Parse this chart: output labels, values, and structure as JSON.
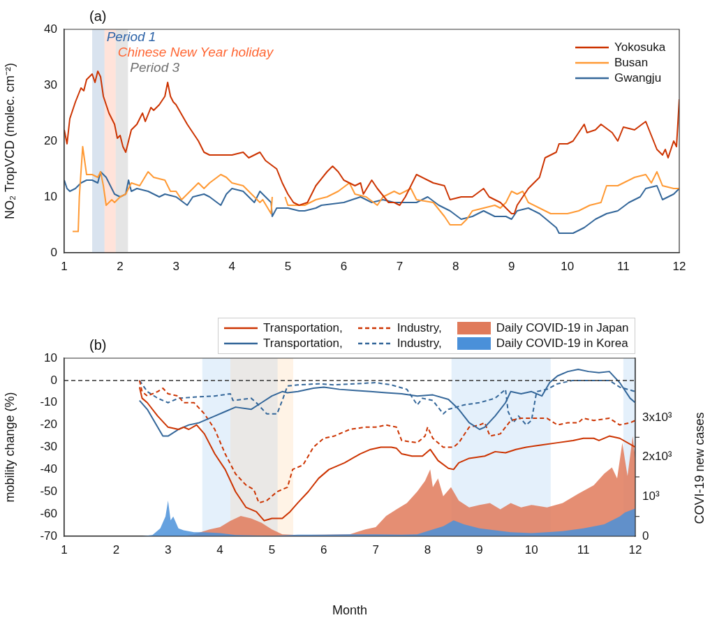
{
  "chart_data": [
    {
      "type": "line",
      "title": "(a)",
      "ylabel": "NO₂ TropVCD (molec. cm⁻²)",
      "xlim": [
        1,
        12
      ],
      "xticks": [
        1,
        2,
        3,
        4,
        5,
        6,
        7,
        8,
        9,
        10,
        11,
        12
      ],
      "ylim": [
        0,
        40
      ],
      "yticks": [
        0,
        10,
        20,
        30,
        40
      ],
      "legend": "top right",
      "bands": [
        {
          "axis": "x",
          "from": 1.5,
          "to": 1.72,
          "label": "Period 1",
          "color": "#2e64a8"
        },
        {
          "axis": "x",
          "from": 1.72,
          "to": 1.92,
          "label": "Chinese New Year holiday",
          "color": "#ff6633"
        },
        {
          "axis": "x",
          "from": 1.92,
          "to": 2.14,
          "label": "Period 3",
          "color": "#707070"
        }
      ],
      "series": [
        {
          "name": "Yokosuka",
          "color": "#cc3300",
          "x": [
            1.0,
            1.05,
            1.1,
            1.2,
            1.3,
            1.35,
            1.4,
            1.5,
            1.55,
            1.6,
            1.65,
            1.7,
            1.8,
            1.9,
            1.95,
            2.0,
            2.05,
            2.1,
            2.15,
            2.2,
            2.3,
            2.4,
            2.45,
            2.55,
            2.6,
            2.7,
            2.8,
            2.85,
            2.9,
            2.95,
            3.0,
            3.2,
            3.4,
            3.5,
            3.6,
            3.8,
            4.0,
            4.2,
            4.3,
            4.5,
            4.6,
            4.8,
            4.9,
            5.0,
            5.1,
            5.2,
            5.35,
            5.5,
            5.7,
            5.8,
            5.9,
            6.0,
            6.2,
            6.3,
            6.35,
            6.5,
            6.6,
            6.8,
            6.9,
            7.0,
            7.1,
            7.3,
            7.5,
            7.6,
            7.8,
            7.9,
            8.1,
            8.3,
            8.5,
            8.6,
            8.8,
            9.0,
            9.05,
            9.1,
            9.3,
            9.5,
            9.6,
            9.8,
            9.85,
            10.0,
            10.1,
            10.3,
            10.35,
            10.5,
            10.6,
            10.8,
            10.9,
            11.0,
            11.2,
            11.4,
            11.5,
            11.6,
            11.7,
            11.75,
            11.8,
            11.9,
            11.95,
            11.98,
            12.0
          ],
          "values": [
            22,
            19.5,
            24,
            27,
            29.5,
            29,
            31,
            32,
            30.5,
            32.5,
            31.5,
            28,
            25,
            23,
            20.5,
            21,
            19,
            18,
            20,
            22,
            23,
            25,
            23.5,
            26,
            25.5,
            26.5,
            28,
            30.5,
            28,
            27,
            26.5,
            23,
            20,
            18,
            17.5,
            17.5,
            17.5,
            18,
            17,
            18,
            16.5,
            15,
            12.5,
            10.5,
            9,
            8.5,
            9,
            12,
            14.5,
            15.5,
            14.5,
            13,
            12,
            12.5,
            10.5,
            13,
            11.5,
            9,
            9,
            8.5,
            10,
            14,
            13,
            12.5,
            12,
            9.5,
            10,
            10,
            11.5,
            10,
            9,
            7,
            7,
            8.5,
            11.5,
            13.5,
            17,
            18,
            19.5,
            19.5,
            20,
            23,
            21.5,
            22,
            23,
            21.5,
            20,
            22.5,
            22,
            23.5,
            21,
            18.5,
            17.5,
            18.5,
            17,
            20,
            19,
            24,
            27.5
          ]
        },
        {
          "name": "Busan",
          "color": "#ff9933",
          "x": [
            1.15,
            1.25,
            1.27,
            1.33,
            1.4,
            1.5,
            1.6,
            1.65,
            1.7,
            1.75,
            1.85,
            1.9,
            2.0,
            2.1,
            2.2,
            2.35,
            2.5,
            2.6,
            2.8,
            2.9,
            3.0,
            3.1,
            3.2,
            3.3,
            3.4,
            3.5,
            3.6,
            3.8,
            3.9,
            4.0,
            4.2,
            4.4,
            4.5,
            4.55,
            4.7,
            4.72,
            4.8,
            4.95,
            5.0,
            5.3,
            5.5,
            5.7,
            5.9,
            6.1,
            6.2,
            6.4,
            6.6,
            6.7,
            6.9,
            7.0,
            7.2,
            7.3,
            7.6,
            7.8,
            7.9,
            8.1,
            8.2,
            8.3,
            8.5,
            8.7,
            8.8,
            8.9,
            9.0,
            9.1,
            9.2,
            9.3,
            9.5,
            9.7,
            10.0,
            10.2,
            10.4,
            10.6,
            10.7,
            10.9,
            11.0,
            11.2,
            11.4,
            11.5,
            11.6,
            11.7,
            11.9,
            12.0
          ],
          "values": [
            3.8,
            3.8,
            10,
            19,
            14,
            14,
            13.5,
            14.5,
            12,
            8.5,
            9.5,
            9,
            10,
            10.5,
            12.5,
            12,
            14.5,
            13.5,
            13,
            11,
            11,
            9.5,
            10.5,
            11.5,
            12.5,
            11.5,
            12.5,
            14,
            13.5,
            12.5,
            12,
            10,
            9,
            9.5,
            7,
            10,
            null,
            10,
            8.5,
            8.5,
            9.5,
            10,
            11,
            12.5,
            10.5,
            10,
            8.5,
            10,
            11,
            10.5,
            11.5,
            9.5,
            9,
            6.5,
            5,
            5,
            6,
            7.5,
            8,
            8.5,
            8,
            9,
            11,
            10.5,
            11,
            9,
            8,
            7,
            7,
            7.5,
            8.5,
            9,
            12,
            12,
            12.5,
            13.5,
            14,
            12.5,
            14.5,
            12,
            11.5,
            11.5
          ]
        },
        {
          "name": "Gwangju",
          "color": "#336699",
          "x": [
            1.0,
            1.05,
            1.1,
            1.2,
            1.3,
            1.4,
            1.5,
            1.6,
            1.65,
            1.75,
            1.8,
            1.9,
            2.0,
            2.1,
            2.15,
            2.2,
            2.3,
            2.5,
            2.7,
            2.8,
            3.0,
            3.2,
            3.3,
            3.5,
            3.6,
            3.8,
            3.9,
            4.0,
            4.2,
            4.4,
            4.5,
            4.6,
            4.7,
            4.72,
            4.8,
            5.0,
            5.2,
            5.3,
            5.5,
            5.6,
            6.0,
            6.3,
            6.5,
            6.7,
            6.9,
            7.1,
            7.3,
            7.5,
            7.7,
            7.9,
            8.1,
            8.3,
            8.5,
            8.7,
            8.9,
            9.0,
            9.1,
            9.3,
            9.5,
            9.8,
            9.85,
            10.1,
            10.3,
            10.5,
            10.7,
            10.9,
            11.1,
            11.3,
            11.4,
            11.6,
            11.7,
            11.9,
            12.0
          ],
          "values": [
            13,
            11.5,
            11,
            11.5,
            12.5,
            13,
            13,
            12.5,
            14.5,
            13.5,
            12.5,
            10.5,
            10,
            10.5,
            13,
            11,
            11.5,
            11,
            10,
            10.5,
            10,
            8.5,
            10,
            10.5,
            10,
            8.5,
            10.5,
            11.5,
            11,
            9,
            11,
            10,
            9,
            6.5,
            8,
            8,
            7.5,
            7.5,
            8,
            8.5,
            9,
            10,
            9,
            9.5,
            9,
            9,
            9,
            10,
            8.5,
            7.5,
            6,
            6.5,
            7.5,
            6.5,
            6.5,
            6,
            7.5,
            8,
            7,
            4.5,
            3.5,
            3.5,
            4.5,
            6,
            7,
            7.5,
            9,
            10,
            11.5,
            12,
            9.5,
            10.5,
            11.5
          ]
        }
      ]
    },
    {
      "type": "line",
      "title": "(b)",
      "xlabel": "Month",
      "ylabel": "mobility change (%)",
      "y2label": "COVI-19 new cases",
      "xlim": [
        1,
        12
      ],
      "xticks": [
        1,
        2,
        3,
        4,
        5,
        6,
        7,
        8,
        9,
        10,
        11,
        12
      ],
      "ylim": [
        -70,
        10
      ],
      "yticks": [
        -70,
        -60,
        -50,
        -40,
        -30,
        -20,
        -10,
        0,
        10
      ],
      "y2lim": [
        0,
        4500
      ],
      "y2ticks": [
        0,
        {
          "value": 500,
          "label": null
        },
        {
          "value": 1000,
          "label": "10³"
        },
        {
          "value": 1500,
          "label": null
        },
        {
          "value": 2000,
          "label": "2x10³"
        },
        {
          "value": 2500,
          "label": null
        },
        {
          "value": 3000,
          "label": "3x10³"
        }
      ],
      "legend": "top",
      "ref_lines": [
        {
          "axis": "y",
          "value": 0,
          "color": "#333333",
          "line_style": "dashed"
        }
      ],
      "bands": [
        {
          "axis": "x",
          "from": 3.66,
          "to": 4.2,
          "color": "#6aaae8"
        },
        {
          "axis": "x",
          "from": 4.2,
          "to": 5.11,
          "color": "#8a8077"
        },
        {
          "axis": "x",
          "from": 5.11,
          "to": 5.41,
          "color": "#ffbb77"
        },
        {
          "axis": "x",
          "from": 8.46,
          "to": 10.37,
          "color": "#6aaae8"
        },
        {
          "axis": "x",
          "from": 11.77,
          "to": 12.0,
          "color": "#6aaae8"
        }
      ],
      "series": [
        {
          "name": "Transportation,",
          "type": "line",
          "color": "#cc3300",
          "x": [
            2.45,
            2.5,
            2.6,
            2.8,
            3.0,
            3.2,
            3.3,
            3.4,
            3.55,
            3.7,
            3.9,
            4.1,
            4.3,
            4.5,
            4.7,
            4.85,
            5.0,
            5.2,
            5.35,
            5.5,
            5.7,
            5.9,
            6.1,
            6.4,
            6.7,
            6.9,
            7.1,
            7.3,
            7.4,
            7.5,
            7.7,
            7.9,
            8.05,
            8.2,
            8.4,
            8.5,
            8.6,
            8.8,
            9.1,
            9.3,
            9.5,
            9.7,
            9.9,
            10.2,
            10.5,
            10.8,
            11.0,
            11.2,
            11.3,
            11.5,
            11.7,
            12.0
          ],
          "values": [
            -3,
            -8,
            -10,
            -16,
            -21,
            -22,
            -21,
            -22,
            -20,
            -24,
            -33,
            -40,
            -50,
            -57,
            -59,
            -63,
            -62,
            -62,
            -59,
            -55,
            -50,
            -44,
            -40,
            -37,
            -33,
            -31,
            -30,
            -30,
            -30.5,
            -33,
            -34,
            -34,
            -31,
            -36,
            -39.5,
            -40,
            -37,
            -35,
            -34,
            -32,
            -32.5,
            -31,
            -30,
            -29,
            -28,
            -27,
            -26,
            -26,
            -27,
            -25,
            -26,
            -30
          ]
        },
        {
          "name": "Transportation,",
          "type": "line",
          "color": "#336699",
          "x": [
            2.45,
            2.6,
            2.8,
            2.9,
            3.0,
            3.2,
            3.4,
            3.6,
            3.9,
            4.1,
            4.3,
            4.6,
            4.8,
            5.0,
            5.2,
            5.3,
            5.5,
            5.8,
            6.0,
            6.3,
            6.6,
            6.9,
            7.2,
            7.5,
            7.8,
            8.1,
            8.4,
            8.6,
            8.8,
            9.0,
            9.1,
            9.3,
            9.5,
            9.6,
            9.8,
            10.0,
            10.2,
            10.35,
            10.5,
            10.7,
            10.9,
            11.1,
            11.3,
            11.5,
            11.7,
            11.9,
            12.0
          ],
          "values": [
            -9,
            -13,
            -21,
            -25,
            -25,
            -22,
            -20,
            -19,
            -16,
            -14,
            -12,
            -13,
            -10,
            -7,
            -5,
            -5.5,
            -5,
            -3.5,
            -3,
            -4,
            -4.5,
            -5,
            -5.5,
            -6,
            -7,
            -6.5,
            -8.5,
            -13,
            -19,
            -22,
            -21,
            -16,
            -10,
            -5,
            -6,
            -5,
            -7,
            -1,
            2,
            4,
            5,
            4,
            3.5,
            4,
            -1,
            -8,
            -10
          ]
        },
        {
          "name": "Industry,",
          "type": "line",
          "line_style": "dashed",
          "color": "#cc3300",
          "x": [
            2.45,
            2.5,
            2.6,
            2.8,
            2.9,
            3.0,
            3.2,
            3.3,
            3.5,
            3.7,
            3.9,
            4.1,
            4.3,
            4.5,
            4.65,
            4.75,
            4.9,
            5.1,
            5.3,
            5.4,
            5.6,
            5.8,
            6.0,
            6.2,
            6.5,
            6.8,
            7.0,
            7.2,
            7.4,
            7.5,
            7.8,
            7.95,
            8.0,
            8.1,
            8.3,
            8.5,
            8.6,
            8.8,
            9.0,
            9.1,
            9.2,
            9.4,
            9.6,
            9.8,
            10.0,
            10.3,
            10.5,
            10.7,
            10.9,
            11.0,
            11.2,
            11.5,
            11.7,
            11.9,
            12.0
          ],
          "values": [
            0,
            -5,
            -7,
            -5,
            -3.5,
            -6,
            -7,
            -10,
            -10,
            -15,
            -22,
            -33,
            -42,
            -47,
            -49,
            -55,
            -54,
            -50,
            -48,
            -40,
            -38,
            -30,
            -26,
            -25,
            -22,
            -21,
            -21,
            -20,
            -21,
            -27,
            -28,
            -25,
            -21,
            -26,
            -30,
            -30,
            -28,
            -21,
            -20,
            -19,
            -25,
            -24,
            -18,
            -17,
            -17,
            -17,
            -20,
            -19,
            -19,
            -17,
            -18,
            -17,
            -20,
            -19,
            -18
          ]
        },
        {
          "name": "Industry,",
          "type": "line",
          "line_style": "dashed",
          "color": "#336699",
          "x": [
            2.45,
            2.6,
            2.8,
            3.0,
            3.2,
            3.5,
            3.9,
            4.2,
            4.25,
            4.6,
            4.7,
            4.9,
            5.1,
            5.2,
            5.3,
            5.5,
            5.9,
            6.2,
            6.6,
            7.0,
            7.3,
            7.6,
            7.8,
            7.9,
            8.1,
            8.3,
            8.4,
            8.7,
            9.0,
            9.3,
            9.5,
            9.55,
            9.65,
            9.75,
            9.9,
            10.0,
            10.1,
            10.3,
            10.5,
            10.8,
            11.0,
            11.3,
            11.5,
            11.7,
            12.0
          ],
          "values": [
            0,
            -5,
            -8,
            -10,
            -8,
            -7.5,
            -7,
            -6,
            -9,
            -8,
            -10,
            -15,
            -15,
            -9,
            -2.5,
            -2,
            -1.5,
            -2,
            -1.5,
            -1,
            -2,
            -4,
            -11,
            -8,
            -9,
            -15,
            -13,
            -11,
            -10,
            -8,
            -4,
            -14,
            -19,
            -16,
            -20,
            -18,
            -5,
            -4,
            -1.5,
            0,
            0,
            0,
            0,
            -3,
            -5
          ]
        },
        {
          "name": "Daily COVID-19 in Japan",
          "type": "area",
          "axis": "y2",
          "color": "#e07a5a",
          "x": [
            2.5,
            3.3,
            3.5,
            3.8,
            4.0,
            4.2,
            4.4,
            4.6,
            4.8,
            5.0,
            5.2,
            5.5,
            6.5,
            6.8,
            7.0,
            7.2,
            7.4,
            7.6,
            7.8,
            7.95,
            8.05,
            8.1,
            8.2,
            8.3,
            8.45,
            8.6,
            8.8,
            9.0,
            9.2,
            9.4,
            9.6,
            9.8,
            10.0,
            10.3,
            10.6,
            10.9,
            11.2,
            11.4,
            11.55,
            11.65,
            11.75,
            11.85,
            11.95,
            12.0
          ],
          "values": [
            0,
            10,
            50,
            170,
            230,
            390,
            510,
            450,
            340,
            170,
            50,
            30,
            50,
            170,
            230,
            510,
            680,
            840,
            1130,
            1400,
            1690,
            1240,
            1460,
            1010,
            1240,
            900,
            730,
            790,
            840,
            680,
            840,
            730,
            790,
            730,
            840,
            1070,
            1290,
            1580,
            1740,
            1460,
            2360,
            1520,
            2530,
            1970
          ]
        },
        {
          "name": "Daily COVID-19 in Korea",
          "type": "area",
          "axis": "y2",
          "color": "#4a90d9",
          "x": [
            2.5,
            2.7,
            2.85,
            2.95,
            3.0,
            3.05,
            3.1,
            3.2,
            3.3,
            3.5,
            3.7,
            4.0,
            4.3,
            5.0,
            5.5,
            6.0,
            6.5,
            7.0,
            7.5,
            7.8,
            8.3,
            8.5,
            8.7,
            9.0,
            9.3,
            9.6,
            10.0,
            10.3,
            10.6,
            11.0,
            11.4,
            11.7,
            11.8,
            12.0
          ],
          "values": [
            0,
            30,
            200,
            500,
            900,
            400,
            500,
            200,
            150,
            100,
            100,
            80,
            30,
            10,
            40,
            40,
            50,
            50,
            40,
            50,
            250,
            400,
            300,
            200,
            150,
            100,
            80,
            100,
            130,
            200,
            300,
            500,
            600,
            700
          ]
        }
      ]
    }
  ]
}
